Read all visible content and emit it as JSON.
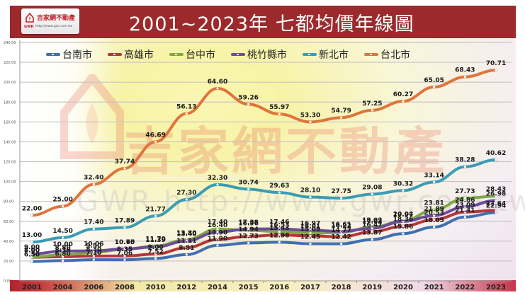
{
  "header": {
    "title": "2001~2023年 七都均價年線圖",
    "logo": {
      "name": "吉家網不動產",
      "abbr": "GWR",
      "url": "http://www.gwr.com.tw"
    }
  },
  "watermark": {
    "brand": "吉家網不動產",
    "url": "GWR http://www.gwr.com.tw"
  },
  "colors": {
    "header_bg": "#9c2a2d",
    "台南市": "#3f6fb0",
    "高雄市": "#b5363a",
    "台中市": "#7fa845",
    "桃竹縣市": "#6b4c9a",
    "新北市": "#3a9cb5",
    "台北市": "#e0743a"
  },
  "chart_data": {
    "type": "line",
    "title": "2001~2023年 七都均價年線圖",
    "xlabel": "",
    "ylabel": "",
    "y_tick_labels": [
      "0.00",
      "20.00",
      "40.00",
      "60.00",
      "80.00",
      "100.00",
      "120.00",
      "140.00",
      "160.00",
      "180.00",
      "200.00",
      "220.00",
      "240.00"
    ],
    "ylim": [
      0,
      240
    ],
    "plot_scale_note": "values plotted at 3x against printed tick labels",
    "plot_value_multiplier": 3,
    "grid": true,
    "legend_position": "top-left",
    "categories": [
      "2001",
      "2004",
      "2006",
      "2008",
      "2010",
      "2012",
      "2014",
      "2015",
      "2016",
      "2017",
      "2018",
      "2019",
      "2020",
      "2021",
      "2022",
      "2023"
    ],
    "series": [
      {
        "name": "台南市",
        "color": "#3f6fb0",
        "values": [
          6.5,
          6.8,
          7.1,
          7.06,
          7.52,
          8.81,
          11.9,
          12.73,
          12.98,
          12.45,
          12.42,
          13.87,
          15.86,
          18.05,
          21.41,
          22.94
        ]
      },
      {
        "name": "高雄市",
        "color": "#b5363a",
        "values": [
          7.9,
          8.1,
          8.3,
          8.35,
          9.0,
          11.11,
          13.9,
          14.94,
          15.43,
          15.09,
          14.77,
          16.47,
          18.36,
          20.53,
          23.09,
          23.64
        ]
      },
      {
        "name": "台中市",
        "color": "#7fa845",
        "values": [
          8.0,
          8.8,
          9.5,
          10.65,
          11.7,
          13.8,
          17.4,
          16.96,
          16.53,
          16.01,
          16.22,
          18.02,
          20.04,
          23.81,
          27.73,
          28.43
        ]
      },
      {
        "name": "桃竹縣市",
        "color": "#6b4c9a",
        "values": [
          9.0,
          10.0,
          10.06,
          10.7,
          11.39,
          13.4,
          16.4,
          17.38,
          17.46,
          16.97,
          16.61,
          17.62,
          19.97,
          21.89,
          24.86,
          26.98
        ]
      },
      {
        "name": "新北市",
        "color": "#3a9cb5",
        "values": [
          13.0,
          14.5,
          17.4,
          17.89,
          21.77,
          27.3,
          32.3,
          30.74,
          29.63,
          28.1,
          27.75,
          29.08,
          30.32,
          33.14,
          38.28,
          40.62
        ]
      },
      {
        "name": "台北市",
        "color": "#e0743a",
        "values": [
          22.0,
          25.0,
          32.4,
          37.74,
          46.69,
          56.13,
          64.6,
          59.26,
          55.97,
          53.3,
          54.79,
          57.25,
          60.27,
          65.05,
          68.43,
          70.71
        ]
      }
    ]
  }
}
